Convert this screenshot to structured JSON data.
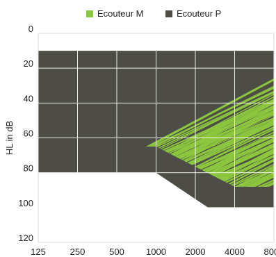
{
  "chart_data": {
    "type": "area",
    "title": "",
    "xlabel": "",
    "ylabel": "HL in dB",
    "x_scale": "log",
    "y_inverted": true,
    "x_ticks": [
      125,
      250,
      500,
      1000,
      2000,
      4000,
      8000
    ],
    "x_tick_labels": [
      "125",
      "250",
      "500",
      "1000",
      "2000",
      "4000",
      "8000"
    ],
    "y_ticks": [
      0,
      20,
      40,
      60,
      80,
      100,
      120
    ],
    "y_tick_labels": [
      "0",
      "20",
      "40",
      "60",
      "80",
      "100",
      "120"
    ],
    "xlim": [
      125,
      8000
    ],
    "ylim": [
      0,
      120
    ],
    "grid": true,
    "legend_position": "top",
    "series": [
      {
        "name": "Ecouteur M",
        "color": "#8cc63f",
        "pattern": "hatched",
        "upper": {
          "x": [
            125,
            8000
          ],
          "y": [
            0,
            0
          ]
        },
        "lower": {
          "x": [
            125,
            1000,
            4000,
            8000
          ],
          "y": [
            65,
            65,
            88,
            88
          ]
        }
      },
      {
        "name": "Ecouteur P",
        "color": "#4d4d45",
        "pattern": "solid",
        "upper": {
          "x": [
            125,
            8000
          ],
          "y": [
            10,
            10
          ]
        },
        "lower": {
          "x": [
            125,
            1000,
            2500,
            8000
          ],
          "y": [
            80,
            80,
            100,
            100
          ]
        }
      }
    ]
  }
}
